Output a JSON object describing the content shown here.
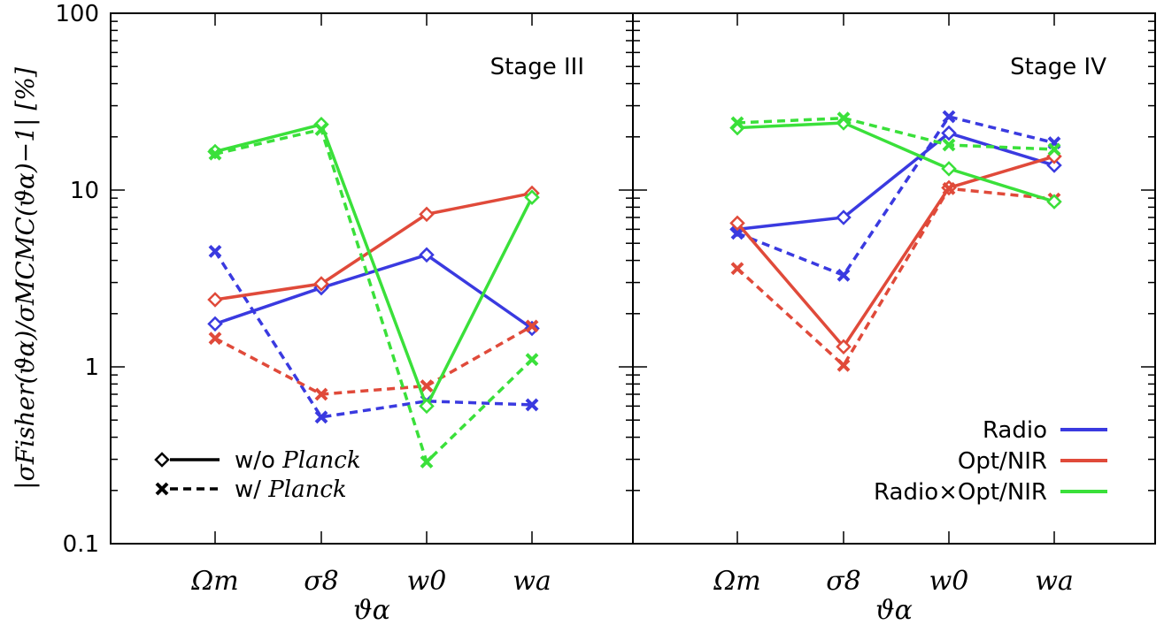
{
  "chart_data": {
    "type": "line",
    "y_scale": "log",
    "ylim": [
      0.1,
      100
    ],
    "ylabel": "|σFisher(ϑα)/σMCMC(ϑα)−1|  [%]",
    "xlabel": "ϑα",
    "y_ticks": [
      "0.1",
      "1",
      "10",
      "100"
    ],
    "categories": [
      "Ωm",
      "σ8",
      "w0",
      "wa"
    ],
    "colors": {
      "Radio": "#3a3ae0",
      "Opt/NIR": "#e04a3a",
      "Radio×Opt/NIR": "#3ae03a"
    },
    "panels": [
      {
        "title": "Stage III",
        "series": [
          {
            "name": "Radio",
            "planck": false,
            "values": [
              1.75,
              2.8,
              4.3,
              1.65
            ]
          },
          {
            "name": "Radio",
            "planck": true,
            "values": [
              4.5,
              0.52,
              0.64,
              0.61
            ]
          },
          {
            "name": "Opt/NIR",
            "planck": false,
            "values": [
              2.4,
              2.95,
              7.3,
              9.6
            ]
          },
          {
            "name": "Opt/NIR",
            "planck": true,
            "values": [
              1.45,
              0.7,
              0.78,
              1.7
            ]
          },
          {
            "name": "Radio×Opt/NIR",
            "planck": false,
            "values": [
              16.5,
              23.5,
              0.6,
              9.1
            ]
          },
          {
            "name": "Radio×Opt/NIR",
            "planck": true,
            "values": [
              16.0,
              22.0,
              0.29,
              1.1
            ]
          }
        ]
      },
      {
        "title": "Stage IV",
        "series": [
          {
            "name": "Radio",
            "planck": false,
            "values": [
              6.0,
              7.0,
              21.0,
              13.8
            ]
          },
          {
            "name": "Radio",
            "planck": true,
            "values": [
              5.7,
              3.3,
              26.0,
              18.5
            ]
          },
          {
            "name": "Opt/NIR",
            "planck": false,
            "values": [
              6.5,
              1.3,
              10.3,
              15.5
            ]
          },
          {
            "name": "Opt/NIR",
            "planck": true,
            "values": [
              3.6,
              1.02,
              10.2,
              8.9
            ]
          },
          {
            "name": "Radio×Opt/NIR",
            "planck": false,
            "values": [
              22.5,
              24.0,
              13.2,
              8.6
            ]
          },
          {
            "name": "Radio×Opt/NIR",
            "planck": true,
            "values": [
              24.0,
              25.5,
              18.0,
              17.0
            ]
          }
        ]
      }
    ],
    "legend_markers": {
      "without": {
        "prefix": "w/o ",
        "emph": "Planck"
      },
      "with": {
        "prefix": "w/ ",
        "emph": "Planck"
      },
      "placement": "bottom-left of Stage III panel"
    },
    "legend_colors": {
      "items": [
        "Radio",
        "Opt/NIR",
        "Radio×Opt/NIR"
      ],
      "placement": "bottom-right of Stage IV panel"
    }
  }
}
